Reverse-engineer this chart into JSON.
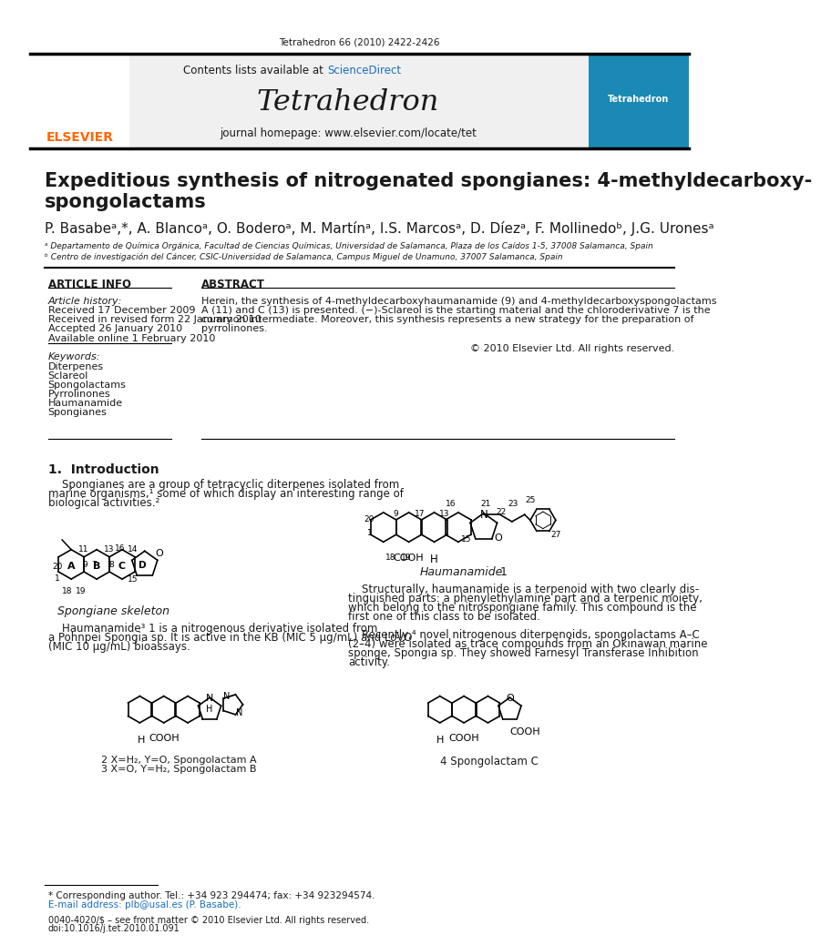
{
  "journal_citation": "Tetrahedron 66 (2010) 2422-2426",
  "journal_name": "Tetrahedron",
  "contents_line": "Contents lists available at ScienceDirect",
  "journal_homepage": "journal homepage: www.elsevier.com/locate/tet",
  "article_title_line1": "Expeditious synthesis of nitrogenated spongianes: 4-methyldecarboxy-",
  "article_title_line2": "spongolactams",
  "authors": "P. Basabeᵃ,*, A. Blancoᵃ, O. Boderoᵃ, M. Martínᵃ, I.S. Marcosᵃ, D. Díezᵃ, F. Mollinedoᵇ, J.G. Uronesᵃ",
  "affil_a": "ᵃ Departamento de Química Orgánica, Facultad de Ciencias Químicas, Universidad de Salamanca, Plaza de los Caídos 1-5, 37008 Salamanca, Spain",
  "affil_b": "ᵇ Centro de investigación del Cáncer, CSIC-Universidad de Salamanca, Campus Miguel de Unamuno, 37007 Salamanca, Spain",
  "article_info_header": "ARTICLE INFO",
  "abstract_header": "ABSTRACT",
  "article_history_label": "Article history:",
  "received1": "Received 17 December 2009",
  "received2": "Received in revised form 22 January 2010",
  "accepted": "Accepted 26 January 2010",
  "available": "Available online 1 February 2010",
  "keywords_label": "Keywords:",
  "keywords": [
    "Diterpenes",
    "Sclareol",
    "Spongolactams",
    "Pyrrolinones",
    "Haumanamide",
    "Spongianes"
  ],
  "abstract_lines": [
    "Herein, the synthesis of 4-methyldecarboxyhaumanamide (9) and 4-methyldecarboxyspongolactams",
    "A (11) and C (13) is presented. (−)-Sclareol is the starting material and the chloroderivative 7 is the",
    "common intermediate. Moreover, this synthesis represents a new strategy for the preparation of",
    "pyrrolinones."
  ],
  "copyright": "© 2010 Elsevier Ltd. All rights reserved.",
  "section1_header": "1.  Introduction",
  "intro1_lines": [
    "    Spongianes are a group of tetracyclic diterpenes isolated from",
    "marine organisms,¹ some of which display an interesting range of",
    "biological activities.²"
  ],
  "intro2_lines": [
    "    Haumanamide³ 1 is a nitrogenous derivative isolated from",
    "a Pohnpei Spongia sp. It is active in the KB (MIC 5 μg/mL) and LoVO",
    "(MIC 10 μg/mL) bioassays."
  ],
  "right_intro1_lines": [
    "    Structurally, haumanamide is a terpenoid with two clearly dis-",
    "tinguished parts: a phenylethylamine part and a terpenic moiety,",
    "which belong to the nitrospongiane family. This compound is the",
    "first one of this class to be isolated."
  ],
  "right_intro2_lines": [
    "    Recently,⁴ novel nitrogenous diterpenoids, spongolactams A–C",
    "(2–4) were isolated as trace compounds from an Okinawan marine",
    "sponge, Spongia sp. They showed Farnesyl Transferase Inhibition",
    "activity."
  ],
  "spongiane_label": "Spongiane skeleton",
  "haumanamide_label": "Haumanamide",
  "compound1_num": "1",
  "compound2_label": "2 X=H₂, Y=O, Spongolactam A",
  "compound3_label": "3 X=O, Y=H₂, Spongolactam B",
  "compound4_label": "4 Spongolactam C",
  "footnote_star": "* Corresponding author. Tel.: +34 923 294474; fax: +34 923294574.",
  "footnote_email": "E-mail address: plb@usal.es (P. Basabe).",
  "footer_line1": "0040-4020/$ – see front matter © 2010 Elsevier Ltd. All rights reserved.",
  "footer_line2": "doi:10.1016/j.tet.2010.01.091",
  "bg_header": "#f0f0f0",
  "bg_white": "#ffffff",
  "color_elsevier_orange": "#ff6600",
  "color_sciencedirect_blue": "#1a6ebd",
  "color_black": "#000000",
  "color_dark": "#1a1a1a",
  "color_line": "#333333"
}
